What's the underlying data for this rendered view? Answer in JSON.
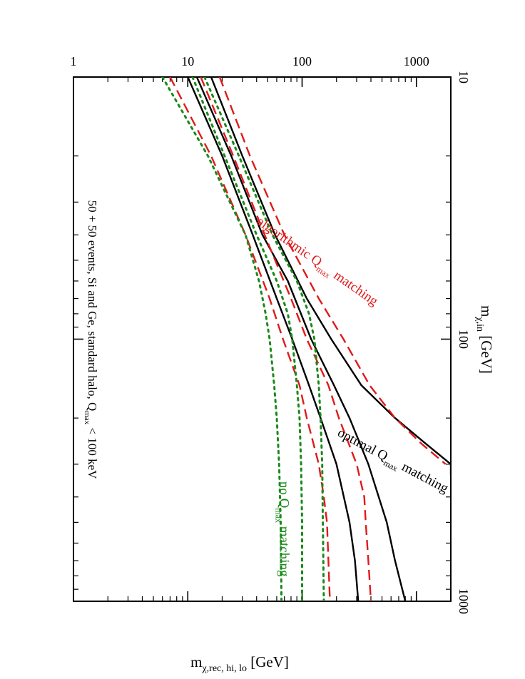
{
  "chart_data": {
    "type": "line",
    "title": "50 + 50 events, Si and Ge, standard halo, Q",
    "title_sub": "max",
    "title_tail": " < 100 keV",
    "x_scale": "log",
    "y_scale": "log",
    "xlim": [
      10,
      1000
    ],
    "ylim": [
      1,
      2000
    ],
    "xlabel": "m",
    "xlabel_sub": "χ,in",
    "xlabel_unit": " [GeV]",
    "ylabel": "m",
    "ylabel_sub": "χ,rec, hi, lo",
    "ylabel_unit": " [GeV]",
    "x_ticks": [
      {
        "value": 10,
        "label": "10"
      },
      {
        "value": 100,
        "label": "100"
      },
      {
        "value": 1000,
        "label": "1000"
      }
    ],
    "y_ticks": [
      {
        "value": 1,
        "label": "1"
      },
      {
        "value": 10,
        "label": "10"
      },
      {
        "value": 100,
        "label": "100"
      },
      {
        "value": 1000,
        "label": "1000"
      }
    ],
    "series": [
      {
        "name": "optimal upper",
        "style": "solid",
        "color": "#000000",
        "x": [
          10,
          20,
          40,
          70,
          100,
          150,
          200,
          250,
          300,
          330
        ],
        "y": [
          16,
          30,
          58,
          110,
          180,
          330,
          650,
          1200,
          2000,
          2000
        ]
      },
      {
        "name": "optimal reconstructed",
        "style": "solid",
        "color": "#000000",
        "x": [
          10,
          20,
          40,
          60,
          100,
          150,
          200,
          300,
          500,
          700,
          1000
        ],
        "y": [
          12,
          24,
          45,
          75,
          120,
          190,
          260,
          380,
          550,
          650,
          800
        ]
      },
      {
        "name": "optimal lower",
        "style": "solid",
        "color": "#000000",
        "x": [
          10,
          20,
          40,
          70,
          100,
          150,
          200,
          300,
          500,
          700,
          1000
        ],
        "y": [
          10,
          20,
          37,
          60,
          82,
          115,
          145,
          200,
          260,
          290,
          310
        ]
      },
      {
        "name": "algorithmic upper",
        "style": "dashed",
        "color": "#e01a1a",
        "x": [
          10,
          20,
          40,
          70,
          100,
          150,
          200,
          250,
          300
        ],
        "y": [
          19,
          35,
          70,
          140,
          230,
          390,
          650,
          1100,
          1800
        ]
      },
      {
        "name": "algorithmic reconstructed",
        "style": "dashed",
        "color": "#e01a1a",
        "x": [
          10,
          20,
          40,
          70,
          100,
          150,
          200,
          300,
          400,
          500,
          700,
          1000
        ],
        "y": [
          13,
          25,
          47,
          80,
          110,
          170,
          210,
          300,
          350,
          360,
          380,
          400
        ]
      },
      {
        "name": "algorithmic lower",
        "style": "dashed",
        "color": "#e01a1a",
        "x": [
          10,
          20,
          40,
          70,
          100,
          150,
          200,
          300,
          400,
          500,
          700,
          1000
        ],
        "y": [
          7,
          16,
          32,
          52,
          68,
          95,
          110,
          140,
          155,
          165,
          170,
          175
        ]
      },
      {
        "name": "no Qmax upper",
        "style": "dotted",
        "color": "#1a8a1a",
        "x": [
          10,
          20,
          40,
          60,
          80,
          100,
          150,
          200,
          300,
          500,
          1000
        ],
        "y": [
          14,
          28,
          55,
          90,
          115,
          128,
          140,
          145,
          150,
          152,
          155
        ]
      },
      {
        "name": "no Qmax reconstructed",
        "style": "dotted",
        "color": "#1a8a1a",
        "x": [
          10,
          20,
          40,
          60,
          80,
          100,
          150,
          200,
          300,
          500,
          1000
        ],
        "y": [
          11,
          21,
          40,
          60,
          75,
          82,
          90,
          95,
          98,
          100,
          100
        ]
      },
      {
        "name": "no Qmax lower",
        "style": "dotted",
        "color": "#1a8a1a",
        "x": [
          10,
          20,
          40,
          60,
          80,
          100,
          150,
          200,
          300,
          500,
          1000
        ],
        "y": [
          6,
          15,
          32,
          42,
          48,
          52,
          57,
          60,
          63,
          65,
          66
        ]
      }
    ],
    "annotations": [
      {
        "id": "optimal",
        "prefix": "optimal Q",
        "sub": "max",
        "suffix": " matching",
        "color": "#000000",
        "at_x": 300,
        "at_y": 600,
        "angle": -62
      },
      {
        "id": "algorithmic",
        "prefix": "algorithmic Q",
        "sub": "max",
        "suffix": " matching",
        "color": "#e01a1a",
        "at_x": 52,
        "at_y": 130,
        "angle": -55
      },
      {
        "id": "noqmax",
        "prefix": "no Q",
        "sub": "max",
        "suffix": " matching",
        "color": "#1a8a1a",
        "at_x": 530,
        "at_y": 64,
        "angle": 0
      }
    ]
  }
}
